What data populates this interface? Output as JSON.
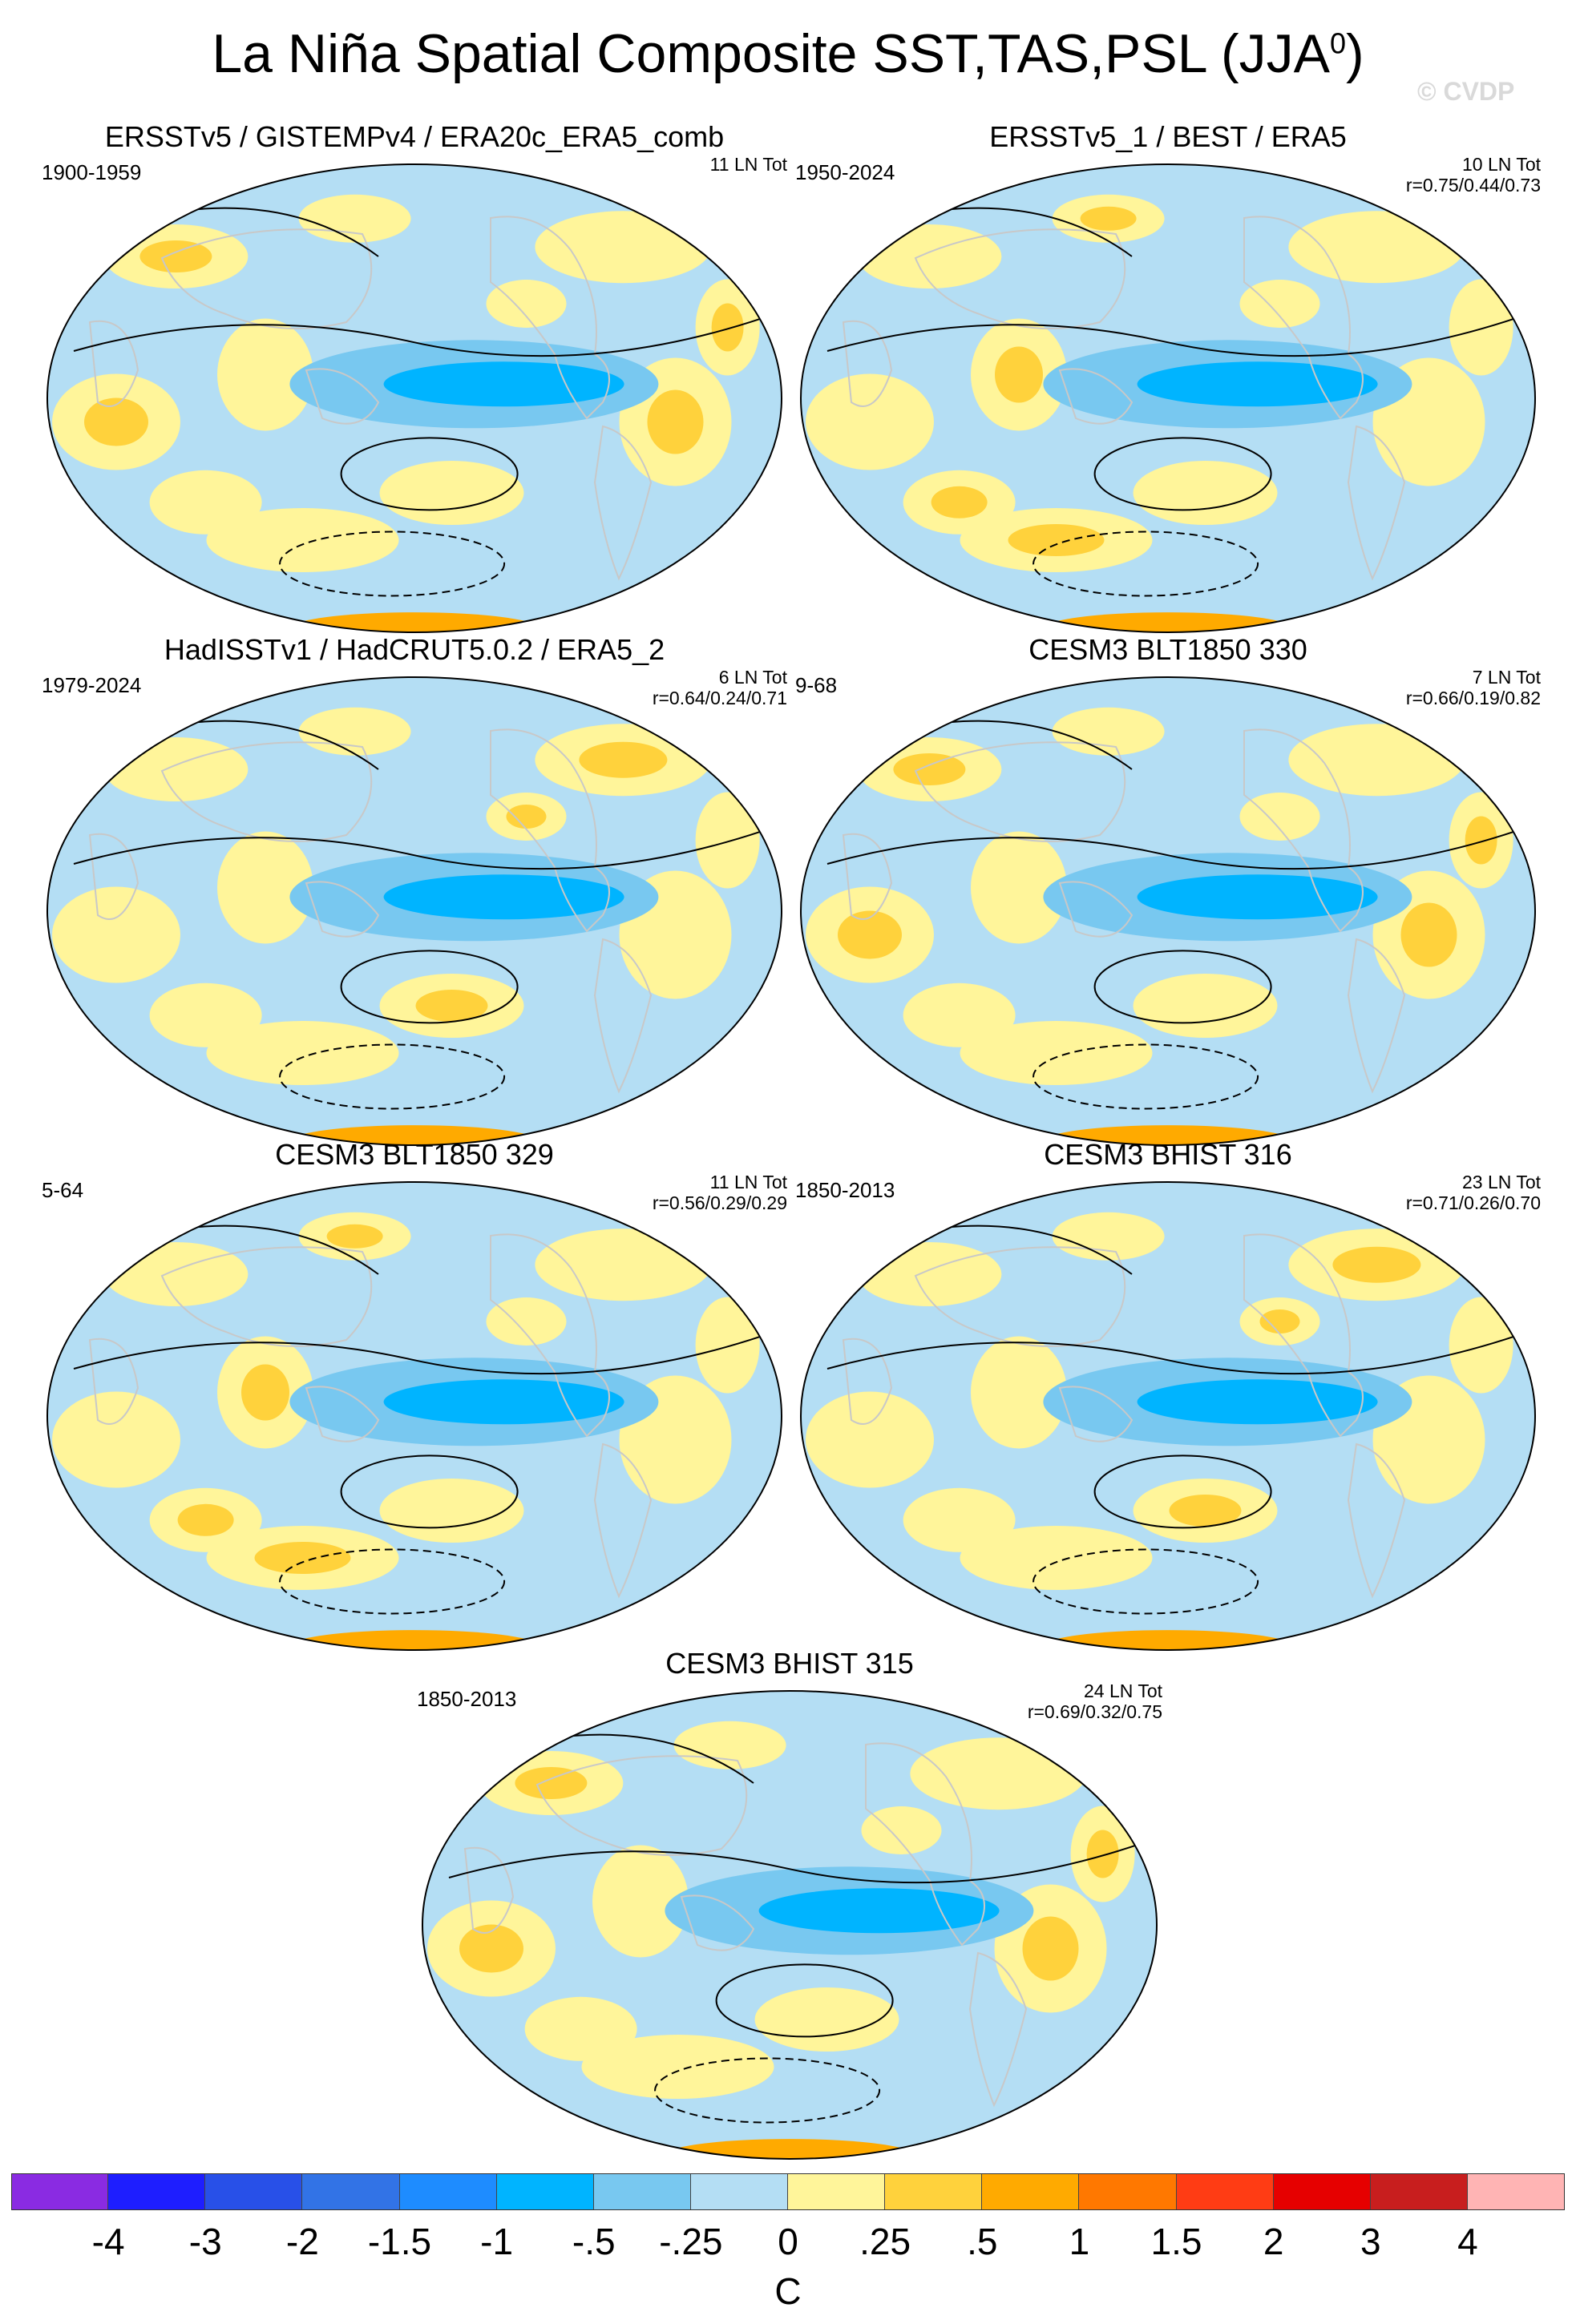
{
  "title": "La Niña Spatial Composite SST,TAS,PSL (JJA",
  "title_superscript": "0",
  "title_close": ")",
  "watermark": "© CVDP",
  "panels": [
    {
      "title": "ERSSTv5 / GISTEMPv4 / ERA20c_ERA5_comb",
      "period": "1900-1959",
      "count": "11 LN Tot",
      "corr": ""
    },
    {
      "title": "ERSSTv5_1 / BEST / ERA5",
      "period": "1950-2024",
      "count": "10 LN Tot",
      "corr": "r=0.75/0.44/0.73"
    },
    {
      "title": "HadISSTv1 / HadCRUT5.0.2 / ERA5_2",
      "period": "1979-2024",
      "count": "6 LN Tot",
      "corr": "r=0.64/0.24/0.71"
    },
    {
      "title": "CESM3 BLT1850 330",
      "period": "9-68",
      "count": "7 LN Tot",
      "corr": "r=0.66/0.19/0.82"
    },
    {
      "title": "CESM3 BLT1850 329",
      "period": "5-64",
      "count": "11 LN Tot",
      "corr": "r=0.56/0.29/0.29"
    },
    {
      "title": "CESM3 BHIST 316",
      "period": "1850-2013",
      "count": "23 LN Tot",
      "corr": "r=0.71/0.26/0.70"
    },
    {
      "title": "CESM3 BHIST 315",
      "period": "1850-2013",
      "count": "24 LN Tot",
      "corr": "r=0.69/0.32/0.75"
    }
  ],
  "colorbar": {
    "labels": [
      "-4",
      "-3",
      "-2",
      "-1.5",
      "-1",
      "-.5",
      "-.25",
      "0",
      ".25",
      ".5",
      "1",
      "1.5",
      "2",
      "3",
      "4"
    ],
    "colors": [
      "#8a2be2",
      "#1e1eff",
      "#2850e8",
      "#3273e6",
      "#1e8cff",
      "#00b4ff",
      "#78c8f0",
      "#b4def4",
      "#fff59a",
      "#ffd23c",
      "#ffaa00",
      "#ff7800",
      "#ff3c14",
      "#e60000",
      "#c81e1e",
      "#ffb4b4"
    ],
    "unit": "C"
  },
  "colors": {
    "ocean_light": "#b4def4",
    "ocean_mid": "#78c8f0",
    "ocean_deep": "#00b4ff",
    "warm_light": "#fff59a",
    "warm_mid": "#ffd23c",
    "warm_strong": "#ffaa00"
  }
}
